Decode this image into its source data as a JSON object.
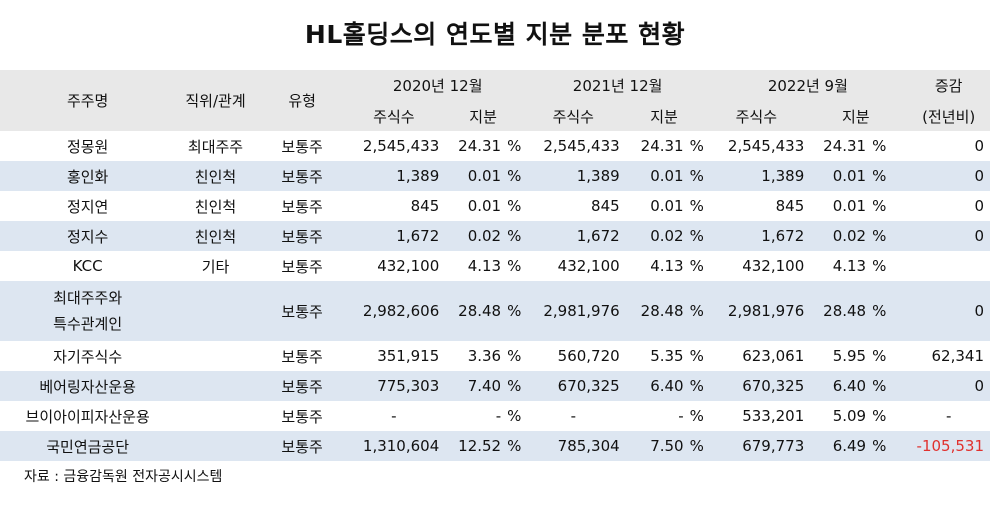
{
  "title": "HL홀딩스의 연도별 지분 분포 현황",
  "header": {
    "holder": "주주명",
    "relation": "직위/관계",
    "type": "유형",
    "period1": "2020년 12월",
    "period2": "2021년 12월",
    "period3": "2022년 9월",
    "change_line1": "증감",
    "change_line2": "(전년비)",
    "shares": "주식수",
    "stake": "지분"
  },
  "rows": [
    {
      "name": "정몽원",
      "relation": "최대주주",
      "type": "보통주",
      "s1": "2,545,433",
      "p1": "24.31",
      "u1": "%",
      "s2": "2,545,433",
      "p2": "24.31",
      "u2": "%",
      "s3": "2,545,433",
      "p3": "24.31",
      "u3": "%",
      "change": "0"
    },
    {
      "name": "홍인화",
      "relation": "친인척",
      "type": "보통주",
      "s1": "1,389",
      "p1": "0.01",
      "u1": "%",
      "s2": "1,389",
      "p2": "0.01",
      "u2": "%",
      "s3": "1,389",
      "p3": "0.01",
      "u3": "%",
      "change": "0"
    },
    {
      "name": "정지연",
      "relation": "친인척",
      "type": "보통주",
      "s1": "845",
      "p1": "0.01",
      "u1": "%",
      "s2": "845",
      "p2": "0.01",
      "u2": "%",
      "s3": "845",
      "p3": "0.01",
      "u3": "%",
      "change": "0"
    },
    {
      "name": "정지수",
      "relation": "친인척",
      "type": "보통주",
      "s1": "1,672",
      "p1": "0.02",
      "u1": "%",
      "s2": "1,672",
      "p2": "0.02",
      "u2": "%",
      "s3": "1,672",
      "p3": "0.02",
      "u3": "%",
      "change": "0"
    },
    {
      "name": "KCC",
      "relation": "기타",
      "type": "보통주",
      "s1": "432,100",
      "p1": "4.13",
      "u1": "%",
      "s2": "432,100",
      "p2": "4.13",
      "u2": "%",
      "s3": "432,100",
      "p3": "4.13",
      "u3": "%",
      "change": ""
    },
    {
      "name_line1": "최대주주와",
      "name_line2": "특수관계인",
      "relation": "",
      "type": "보통주",
      "s1": "2,982,606",
      "p1": "28.48",
      "u1": "%",
      "s2": "2,981,976",
      "p2": "28.48",
      "u2": "%",
      "s3": "2,981,976",
      "p3": "28.48",
      "u3": "%",
      "change": "0"
    },
    {
      "name": "자기주식수",
      "relation": "",
      "type": "보통주",
      "s1": "351,915",
      "p1": "3.36",
      "u1": "%",
      "s2": "560,720",
      "p2": "5.35",
      "u2": "%",
      "s3": "623,061",
      "p3": "5.95",
      "u3": "%",
      "change": "62,341"
    },
    {
      "name": "베어링자산운용",
      "relation": "",
      "type": "보통주",
      "s1": "775,303",
      "p1": "7.40",
      "u1": "%",
      "s2": "670,325",
      "p2": "6.40",
      "u2": "%",
      "s3": "670,325",
      "p3": "6.40",
      "u3": "%",
      "change": "0"
    },
    {
      "name": "브이아이피자산운용",
      "relation": "",
      "type": "보통주",
      "s1": "-",
      "p1": "-",
      "u1": "%",
      "s2": "-",
      "p2": "-",
      "u2": "%",
      "s3": "533,201",
      "p3": "5.09",
      "u3": "%",
      "change": "-"
    },
    {
      "name": "국민연금공단",
      "relation": "",
      "type": "보통주",
      "s1": "1,310,604",
      "p1": "12.52",
      "u1": "%",
      "s2": "785,304",
      "p2": "7.50",
      "u2": "%",
      "s3": "679,773",
      "p3": "6.49",
      "u3": "%",
      "change": "-105,531"
    }
  ],
  "source": "자료 : 금융감독원 전자공시시스템",
  "colors": {
    "header_bg": "#e8e8e8",
    "alt_row_bg": "#dde6f1",
    "negative": "#e0312e"
  }
}
